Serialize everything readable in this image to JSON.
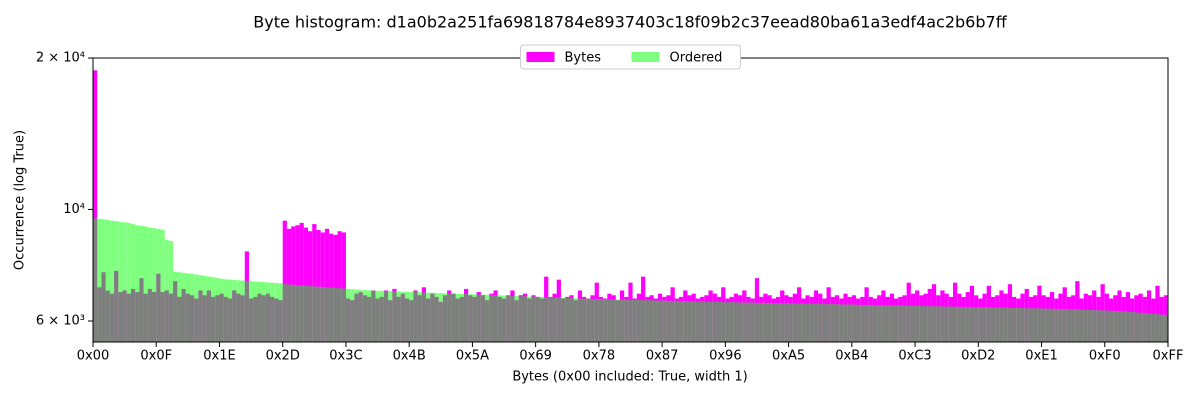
{
  "chart_data": {
    "type": "histogram",
    "title": "Byte histogram: d1a0b2a251fa69818784e8937403c18f09b2c37eead80ba61a3edf4ac2b6b7ff",
    "xlabel": "Bytes (0x00 included: True, width 1)",
    "ylabel": "Occurrence (log True)",
    "log_y": true,
    "legend": "upper center",
    "xlim": [
      0,
      255
    ],
    "ylim": [
      5450,
      20000
    ],
    "yticks": [
      {
        "value": 6000,
        "label": "6 × 10³"
      },
      {
        "value": 10000,
        "label": "10⁴"
      },
      {
        "value": 20000,
        "label": "2 × 10⁴"
      }
    ],
    "xticks": [
      {
        "value": 0,
        "label": "0x00"
      },
      {
        "value": 15,
        "label": "0x0F"
      },
      {
        "value": 30,
        "label": "0x1E"
      },
      {
        "value": 45,
        "label": "0x2D"
      },
      {
        "value": 60,
        "label": "0x3C"
      },
      {
        "value": 75,
        "label": "0x4B"
      },
      {
        "value": 90,
        "label": "0x5A"
      },
      {
        "value": 105,
        "label": "0x69"
      },
      {
        "value": 120,
        "label": "0x78"
      },
      {
        "value": 135,
        "label": "0x87"
      },
      {
        "value": 150,
        "label": "0x96"
      },
      {
        "value": 165,
        "label": "0xA5"
      },
      {
        "value": 180,
        "label": "0xB4"
      },
      {
        "value": 195,
        "label": "0xC3"
      },
      {
        "value": 210,
        "label": "0xD2"
      },
      {
        "value": 225,
        "label": "0xE1"
      },
      {
        "value": 240,
        "label": "0xF0"
      },
      {
        "value": 255,
        "label": "0xFF"
      }
    ],
    "bins": [
      0,
      1,
      2,
      3,
      4,
      5,
      6,
      7,
      8,
      9,
      10,
      11,
      12,
      13,
      14,
      15,
      16,
      17,
      18,
      19,
      20,
      21,
      22,
      23,
      24,
      25,
      26,
      27,
      28,
      29,
      30,
      31,
      32,
      33,
      34,
      35,
      36,
      37,
      38,
      39,
      40,
      41,
      42,
      43,
      44,
      45,
      46,
      47,
      48,
      49,
      50,
      51,
      52,
      53,
      54,
      55,
      56,
      57,
      58,
      59,
      60,
      61,
      62,
      63,
      64,
      65,
      66,
      67,
      68,
      69,
      70,
      71,
      72,
      73,
      74,
      75,
      76,
      77,
      78,
      79,
      80,
      81,
      82,
      83,
      84,
      85,
      86,
      87,
      88,
      89,
      90,
      91,
      92,
      93,
      94,
      95,
      96,
      97,
      98,
      99,
      100,
      101,
      102,
      103,
      104,
      105,
      106,
      107,
      108,
      109,
      110,
      111,
      112,
      113,
      114,
      115,
      116,
      117,
      118,
      119,
      120,
      121,
      122,
      123,
      124,
      125,
      126,
      127,
      128,
      129,
      130,
      131,
      132,
      133,
      134,
      135,
      136,
      137,
      138,
      139,
      140,
      141,
      142,
      143,
      144,
      145,
      146,
      147,
      148,
      149,
      150,
      151,
      152,
      153,
      154,
      155,
      156,
      157,
      158,
      159,
      160,
      161,
      162,
      163,
      164,
      165,
      166,
      167,
      168,
      169,
      170,
      171,
      172,
      173,
      174,
      175,
      176,
      177,
      178,
      179,
      180,
      181,
      182,
      183,
      184,
      185,
      186,
      187,
      188,
      189,
      190,
      191,
      192,
      193,
      194,
      195,
      196,
      197,
      198,
      199,
      200,
      201,
      202,
      203,
      204,
      205,
      206,
      207,
      208,
      209,
      210,
      211,
      212,
      213,
      214,
      215,
      216,
      217,
      218,
      219,
      220,
      221,
      222,
      223,
      224,
      225,
      226,
      227,
      228,
      229,
      230,
      231,
      232,
      233,
      234,
      235,
      236,
      237,
      238,
      239,
      240,
      241,
      242,
      243,
      244,
      245,
      246,
      247,
      248,
      249,
      250,
      251,
      252,
      253,
      254,
      255
    ],
    "series": [
      {
        "name": "Bytes",
        "color": "#ff00ff",
        "opacity": 1,
        "values": [
          18900,
          7000,
          7500,
          6900,
          6800,
          7550,
          6850,
          6900,
          6800,
          6950,
          6850,
          7300,
          6800,
          6950,
          6850,
          7450,
          6850,
          6900,
          6800,
          7200,
          6700,
          6950,
          6800,
          6750,
          6650,
          6900,
          6750,
          6900,
          6700,
          6750,
          6800,
          6700,
          6650,
          6900,
          6800,
          6750,
          8250,
          6650,
          6700,
          6800,
          6750,
          6800,
          6700,
          6650,
          6600,
          9500,
          9150,
          9250,
          9300,
          9400,
          9200,
          9050,
          9350,
          9100,
          9000,
          9150,
          8950,
          8900,
          9050,
          9000,
          6650,
          6600,
          6800,
          6850,
          6750,
          6700,
          6900,
          6650,
          6700,
          6900,
          6600,
          6950,
          6700,
          6800,
          6650,
          6600,
          6900,
          6750,
          7000,
          6650,
          6800,
          6700,
          6550,
          6750,
          6900,
          6800,
          6650,
          6700,
          6950,
          6750,
          6700,
          6850,
          6750,
          6600,
          6800,
          6900,
          6700,
          6650,
          6750,
          6900,
          6600,
          6750,
          6800,
          6650,
          6750,
          6700,
          6650,
          7350,
          6700,
          6800,
          7250,
          6650,
          6700,
          6750,
          6600,
          6900,
          6700,
          6650,
          6750,
          7150,
          6700,
          6650,
          6800,
          6750,
          6600,
          6900,
          6700,
          7150,
          6650,
          6800,
          7350,
          6700,
          6750,
          6650,
          6800,
          6700,
          6750,
          7000,
          6650,
          6700,
          6900,
          6750,
          6800,
          6650,
          6700,
          6750,
          6900,
          6800,
          6700,
          7000,
          6650,
          6700,
          6800,
          6750,
          6900,
          6700,
          6650,
          7300,
          6700,
          6800,
          6750,
          6650,
          6700,
          6900,
          6750,
          6700,
          6800,
          7000,
          6650,
          6750,
          6700,
          6900,
          6800,
          6650,
          7000,
          6700,
          6750,
          6650,
          6800,
          6700,
          6750,
          6650,
          6700,
          7000,
          6700,
          6650,
          6750,
          6900,
          6700,
          6800,
          6650,
          6700,
          6750,
          7150,
          6800,
          6900,
          6750,
          6800,
          6950,
          7100,
          6750,
          6900,
          6800,
          6700,
          7150,
          6800,
          6700,
          6850,
          7050,
          6750,
          6650,
          6800,
          7050,
          6700,
          6750,
          6900,
          6800,
          7100,
          6700,
          6650,
          6800,
          6950,
          6700,
          6750,
          7050,
          6750,
          6700,
          6850,
          6650,
          6800,
          7000,
          6700,
          6750,
          7200,
          6650,
          6800,
          6750,
          6900,
          6700,
          7100,
          6800,
          6650,
          6750,
          6900,
          6700,
          6850,
          6650,
          6750,
          6800,
          6700,
          6900,
          6650,
          7050,
          6700,
          6750
        ]
      },
      {
        "name": "Ordered",
        "color": "#00ff00",
        "opacity": 0.5,
        "values": [
          9600,
          9580,
          9560,
          9540,
          9500,
          9480,
          9450,
          9430,
          9400,
          9350,
          9300,
          9280,
          9250,
          9200,
          9180,
          9150,
          9100,
          8700,
          8650,
          7520,
          7500,
          7480,
          7460,
          7450,
          7420,
          7400,
          7380,
          7350,
          7330,
          7300,
          7280,
          7260,
          7250,
          7240,
          7230,
          7220,
          7210,
          7200,
          7190,
          7180,
          7170,
          7160,
          7150,
          7140,
          7130,
          7100,
          7090,
          7080,
          7070,
          7060,
          7050,
          7040,
          7030,
          7020,
          7010,
          7000,
          6990,
          6980,
          6970,
          6960,
          6950,
          6940,
          6930,
          6920,
          6910,
          6900,
          6900,
          6890,
          6890,
          6880,
          6880,
          6870,
          6870,
          6860,
          6860,
          6850,
          6850,
          6840,
          6840,
          6830,
          6830,
          6820,
          6820,
          6810,
          6810,
          6800,
          6800,
          6790,
          6790,
          6780,
          6780,
          6770,
          6770,
          6760,
          6760,
          6750,
          6750,
          6740,
          6740,
          6730,
          6730,
          6720,
          6720,
          6710,
          6710,
          6700,
          6700,
          6690,
          6690,
          6680,
          6680,
          6670,
          6670,
          6660,
          6660,
          6650,
          6650,
          6650,
          6640,
          6640,
          6640,
          6630,
          6630,
          6630,
          6620,
          6620,
          6620,
          6610,
          6610,
          6610,
          6600,
          6600,
          6600,
          6590,
          6590,
          6590,
          6580,
          6580,
          6580,
          6570,
          6570,
          6570,
          6560,
          6560,
          6560,
          6550,
          6550,
          6550,
          6550,
          6540,
          6540,
          6540,
          6540,
          6530,
          6530,
          6530,
          6530,
          6520,
          6520,
          6520,
          6520,
          6510,
          6510,
          6510,
          6510,
          6500,
          6500,
          6500,
          6500,
          6490,
          6490,
          6490,
          6490,
          6480,
          6480,
          6480,
          6480,
          6470,
          6470,
          6470,
          6470,
          6460,
          6460,
          6460,
          6460,
          6450,
          6450,
          6450,
          6450,
          6440,
          6440,
          6440,
          6440,
          6430,
          6430,
          6430,
          6430,
          6420,
          6420,
          6420,
          6420,
          6410,
          6410,
          6410,
          6410,
          6400,
          6400,
          6400,
          6400,
          6390,
          6390,
          6390,
          6390,
          6380,
          6380,
          6380,
          6380,
          6370,
          6370,
          6370,
          6370,
          6360,
          6360,
          6360,
          6360,
          6350,
          6350,
          6350,
          6340,
          6340,
          6340,
          6330,
          6330,
          6330,
          6320,
          6320,
          6310,
          6310,
          6300,
          6300,
          6290,
          6290,
          6280,
          6280,
          6270,
          6260,
          6250,
          6240,
          6230,
          6220,
          6210,
          6200,
          6190,
          6180,
          6170
        ]
      }
    ]
  }
}
